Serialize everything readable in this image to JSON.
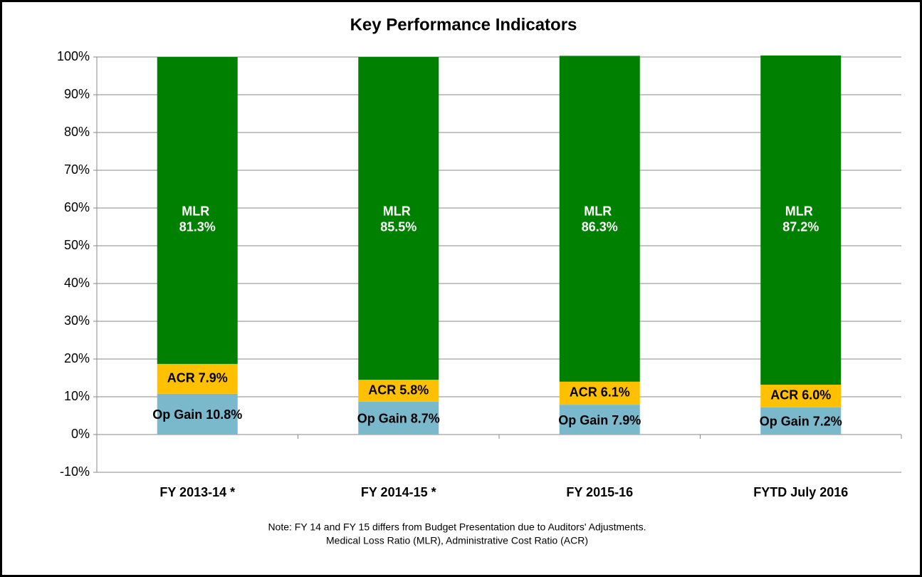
{
  "chart_data": {
    "type": "stacked_bar",
    "title": "Key Performance Indicators",
    "categories": [
      "FY 2013-14 *",
      "FY 2014-15 *",
      "FY 2015-16",
      "FYTD July 2016"
    ],
    "series": [
      {
        "color": "#7ab8cc",
        "values": [
          10.8,
          8.7,
          7.9,
          7.2
        ],
        "value_labels": [
          "Op Gain 10.8%",
          "Op Gain 8.7%",
          "Op Gain 7.9%",
          "Op Gain 7.2%"
        ]
      },
      {
        "color": "#ffc000",
        "values": [
          7.9,
          5.8,
          6.1,
          6.0
        ],
        "value_labels": [
          "ACR 7.9%",
          "ACR 5.8%",
          "ACR 6.1%",
          "ACR 6.0%"
        ]
      },
      {
        "color": "#008000",
        "values": [
          81.3,
          85.5,
          86.3,
          87.2
        ],
        "value_labels": [
          "MLR 81.3%",
          "MLR 85.5%",
          "MLR 86.3%",
          "MLR 87.2%"
        ]
      }
    ],
    "ylim": [
      -10,
      100
    ],
    "yticks": [
      {
        "value": -10,
        "label": "-10%"
      },
      {
        "value": 0,
        "label": "0%"
      },
      {
        "value": 10,
        "label": "10%"
      },
      {
        "value": 20,
        "label": "20%"
      },
      {
        "value": 30,
        "label": "30%"
      },
      {
        "value": 40,
        "label": "40%"
      },
      {
        "value": 50,
        "label": "50%"
      },
      {
        "value": 60,
        "label": "60%"
      },
      {
        "value": 70,
        "label": "70%"
      },
      {
        "value": 80,
        "label": "80%"
      },
      {
        "value": 90,
        "label": "90%"
      },
      {
        "value": 100,
        "label": "100%"
      }
    ],
    "grid": true,
    "notes": [
      "Note:  FY 14 and FY 15 differs from Budget Presentation due to Auditors' Adjustments.",
      "Medical Loss Ratio (MLR), Administrative Cost Ratio (ACR)"
    ]
  }
}
